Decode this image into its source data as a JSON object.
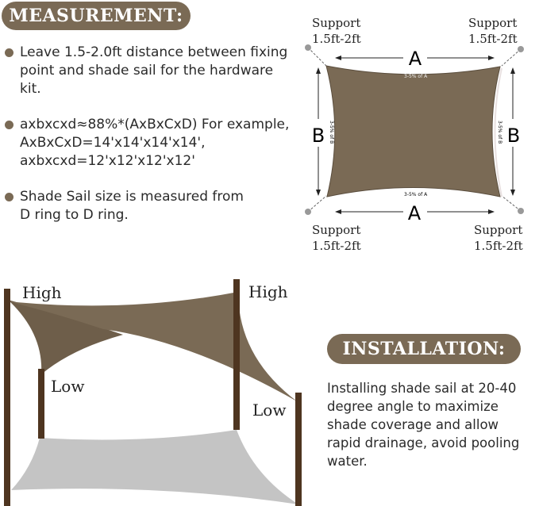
{
  "measurement": {
    "title": "MEASUREMENT:",
    "bullets": [
      {
        "lines": [
          "Leave 1.5-2.0ft distance between fixing",
          "point and shade sail for the hardware",
          "kit."
        ]
      },
      {
        "lines": [
          "axbxcxd≈88%*(AxBxCxD) For example,",
          "AxBxCxD=14'x14'x14'x14',",
          "axbxcxd=12'x12'x12'x12'"
        ]
      },
      {
        "lines": [
          "Shade Sail size is measured from",
          "D ring to D ring."
        ]
      }
    ]
  },
  "diagram": {
    "supports": [
      {
        "line1": "Support",
        "line2": "1.5ft-2ft"
      },
      {
        "line1": "Support",
        "line2": "1.5ft-2ft"
      },
      {
        "line1": "Support",
        "line2": "1.5ft-2ft"
      },
      {
        "line1": "Support",
        "line2": "1.5ft-2ft"
      }
    ],
    "dim_a": "A",
    "dim_b": "B",
    "sag_a": "3-5% of A",
    "sag_b": "3-5% of B",
    "sail_color": "#7a6a55"
  },
  "illustration": {
    "labels": {
      "high_left": "High",
      "high_right": "High",
      "low_left": "Low",
      "low_right": "Low"
    },
    "post_color": "#4e3520",
    "shadow_color": "#c4c4c4"
  },
  "installation": {
    "title": "INSTALLATION:",
    "text": "Installing shade sail at 20-40 degree angle to maximize shade coverage and allow rapid drainage, avoid pooling water."
  }
}
